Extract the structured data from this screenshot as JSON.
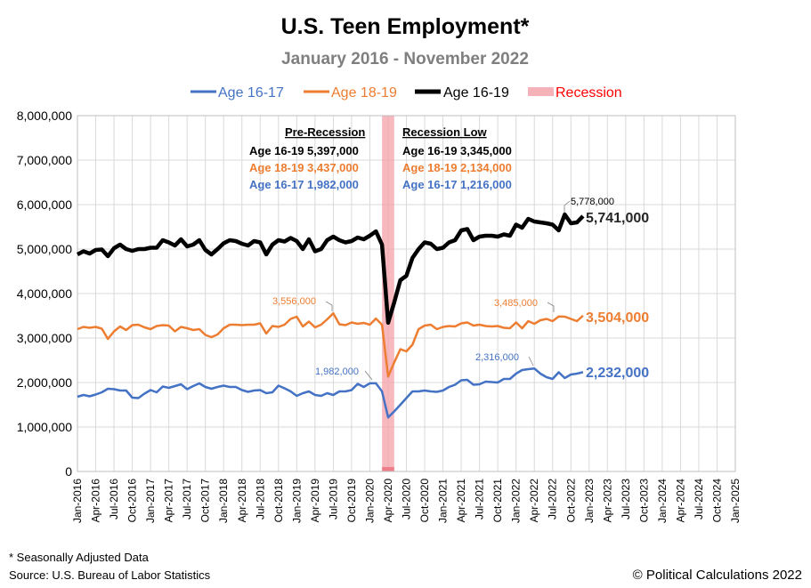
{
  "colors": {
    "age1617": "#4472c4",
    "age1819": "#ed7d31",
    "age1619": "#000000",
    "recession": "#f4a0a8",
    "recession_text": "#ff0000"
  },
  "chart_data": {
    "type": "line",
    "title": "U.S. Teen Employment*",
    "subtitle": "January 2016 - November 2022",
    "ylim": [
      0,
      8000000
    ],
    "yticks": [
      0,
      1000000,
      2000000,
      3000000,
      4000000,
      5000000,
      6000000,
      7000000,
      8000000
    ],
    "ytick_labels": [
      "0",
      "1,000,000",
      "2,000,000",
      "3,000,000",
      "4,000,000",
      "5,000,000",
      "6,000,000",
      "7,000,000",
      "8,000,000"
    ],
    "xrange_months": [
      0,
      108
    ],
    "xtick_labels": [
      "Jan-2016",
      "Apr-2016",
      "Jul-2016",
      "Oct-2016",
      "Jan-2017",
      "Apr-2017",
      "Jul-2017",
      "Oct-2017",
      "Jan-2018",
      "Apr-2018",
      "Jul-2018",
      "Oct-2018",
      "Jan-2019",
      "Apr-2019",
      "Jul-2019",
      "Oct-2019",
      "Jan-2020",
      "Apr-2020",
      "Jul-2020",
      "Oct-2020",
      "Jan-2021",
      "Apr-2021",
      "Jul-2021",
      "Oct-2021",
      "Jan-2022",
      "Apr-2022",
      "Jul-2022",
      "Oct-2022",
      "Jan-2023",
      "Apr-2023",
      "Jul-2023",
      "Oct-2023",
      "Jan-2024",
      "Apr-2024",
      "Jul-2024",
      "Oct-2024",
      "Jan-2025"
    ],
    "grid": true,
    "legend": [
      {
        "name": "Age 16-17",
        "color": "#4472c4"
      },
      {
        "name": "Age 18-19",
        "color": "#ed7d31"
      },
      {
        "name": "Age 16-19",
        "color": "#000000"
      },
      {
        "name": "Recession",
        "color": "#ff0000"
      }
    ],
    "recession": {
      "start_month": 50,
      "end_month": 52
    },
    "series": [
      {
        "name": "Age 16-19",
        "color": "#000000",
        "values": [
          4880000,
          4950000,
          4900000,
          4980000,
          4990000,
          4840000,
          5020000,
          5100000,
          5000000,
          4960000,
          5000000,
          5000000,
          5030000,
          5030000,
          5200000,
          5150000,
          5080000,
          5220000,
          5060000,
          5100000,
          5200000,
          4980000,
          4880000,
          5000000,
          5130000,
          5200000,
          5180000,
          5120000,
          5080000,
          5180000,
          5150000,
          4880000,
          5100000,
          5200000,
          5170000,
          5250000,
          5180000,
          5000000,
          5220000,
          4950000,
          5000000,
          5200000,
          5280000,
          5200000,
          5150000,
          5180000,
          5260000,
          5220000,
          5300000,
          5397000,
          5100000,
          3345000,
          3800000,
          4300000,
          4400000,
          4800000,
          5000000,
          5150000,
          5120000,
          5000000,
          5030000,
          5150000,
          5200000,
          5420000,
          5450000,
          5200000,
          5280000,
          5300000,
          5300000,
          5280000,
          5330000,
          5300000,
          5550000,
          5480000,
          5680000,
          5620000,
          5600000,
          5580000,
          5550000,
          5420000,
          5778000,
          5580000,
          5600000,
          5741000
        ]
      },
      {
        "name": "Age 18-19",
        "color": "#ed7d31",
        "values": [
          3200000,
          3250000,
          3230000,
          3250000,
          3210000,
          2980000,
          3150000,
          3260000,
          3180000,
          3290000,
          3300000,
          3240000,
          3200000,
          3270000,
          3290000,
          3280000,
          3150000,
          3250000,
          3220000,
          3180000,
          3200000,
          3070000,
          3020000,
          3080000,
          3220000,
          3300000,
          3300000,
          3290000,
          3300000,
          3300000,
          3330000,
          3100000,
          3270000,
          3250000,
          3300000,
          3430000,
          3480000,
          3260000,
          3370000,
          3240000,
          3300000,
          3420000,
          3556000,
          3310000,
          3290000,
          3350000,
          3320000,
          3340000,
          3300000,
          3437000,
          3300000,
          2134000,
          2450000,
          2750000,
          2700000,
          2850000,
          3200000,
          3280000,
          3300000,
          3200000,
          3250000,
          3270000,
          3260000,
          3330000,
          3350000,
          3280000,
          3300000,
          3270000,
          3260000,
          3270000,
          3230000,
          3220000,
          3350000,
          3220000,
          3380000,
          3320000,
          3400000,
          3430000,
          3380000,
          3485000,
          3480000,
          3430000,
          3380000,
          3504000
        ]
      },
      {
        "name": "Age 16-17",
        "color": "#4472c4",
        "values": [
          1680000,
          1720000,
          1690000,
          1730000,
          1780000,
          1860000,
          1850000,
          1820000,
          1820000,
          1660000,
          1650000,
          1750000,
          1830000,
          1780000,
          1910000,
          1880000,
          1920000,
          1960000,
          1850000,
          1920000,
          1980000,
          1900000,
          1860000,
          1900000,
          1930000,
          1900000,
          1900000,
          1830000,
          1790000,
          1820000,
          1830000,
          1760000,
          1780000,
          1930000,
          1870000,
          1800000,
          1700000,
          1760000,
          1800000,
          1720000,
          1700000,
          1760000,
          1720000,
          1800000,
          1800000,
          1830000,
          1970000,
          1900000,
          1982000,
          1982000,
          1800000,
          1216000,
          1350000,
          1500000,
          1650000,
          1800000,
          1800000,
          1820000,
          1800000,
          1790000,
          1820000,
          1900000,
          1950000,
          2050000,
          2060000,
          1950000,
          1960000,
          2020000,
          2010000,
          2000000,
          2080000,
          2080000,
          2200000,
          2280000,
          2300000,
          2316000,
          2200000,
          2120000,
          2080000,
          2230000,
          2100000,
          2180000,
          2200000,
          2232000
        ]
      }
    ],
    "pre_recession": {
      "heading": "Pre-Recession",
      "rows": [
        "Age 16-19 5,397,000",
        "Age 18-19 3,437,000",
        "Age 16-17 1,982,000"
      ]
    },
    "recession_low": {
      "heading": "Recession Low",
      "rows": [
        "Age 16-19 3,345,000",
        "Age 18-19 2,134,000",
        "Age 16-17 1,216,000"
      ]
    },
    "point_labels": {
      "black_peak": "5,778,000",
      "orange_peak1": "3,556,000",
      "orange_peak2": "3,485,000",
      "blue_pre": "1,982,000",
      "blue_peak": "2,316,000"
    },
    "end_labels": {
      "black": "5,741,000",
      "orange": "3,504,000",
      "blue": "2,232,000"
    }
  },
  "footnote": "* Seasonally Adjusted Data",
  "source": "Source: U.S. Bureau of Labor Statistics",
  "copyright": "© Political Calculations 2022"
}
